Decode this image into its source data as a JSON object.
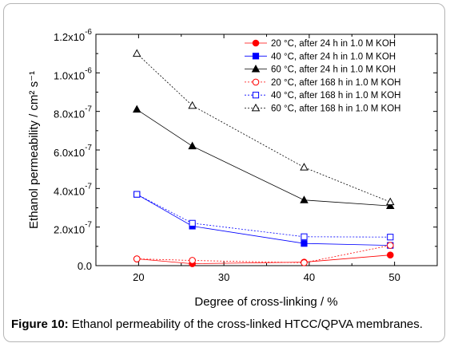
{
  "chart_data": {
    "type": "line",
    "xlabel": "Degree of cross-linking / %",
    "ylabel": "Ethanol permeability / cm² s⁻¹",
    "xlim": [
      15,
      55
    ],
    "ylim": [
      0,
      1.2e-06
    ],
    "x_ticks": [
      20,
      30,
      40,
      50
    ],
    "x_tick_labels": [
      "20",
      "30",
      "40",
      "50"
    ],
    "y_ticks": [
      0,
      2e-07,
      4e-07,
      6e-07,
      8e-07,
      1e-06,
      1.2e-06
    ],
    "y_tick_labels": [
      {
        "mantissa": "0.0",
        "exponent": ""
      },
      {
        "mantissa": "2.0x10",
        "exponent": "-7"
      },
      {
        "mantissa": "4.0x10",
        "exponent": "-7"
      },
      {
        "mantissa": "6.0x10",
        "exponent": "-7"
      },
      {
        "mantissa": "8.0x10",
        "exponent": "-7"
      },
      {
        "mantissa": "1.0x10",
        "exponent": "-6"
      },
      {
        "mantissa": "1.2x10",
        "exponent": "-6"
      }
    ],
    "legend_position": "top-right",
    "series": [
      {
        "name": "20 °C, after 24 h in 1.0 M KOH",
        "color": "#ff0000",
        "marker": "circle",
        "filled": true,
        "dashed": false,
        "x": [
          19.8,
          26.3,
          39.4,
          49.5
        ],
        "y": [
          3.5e-08,
          1e-08,
          1.8e-08,
          5.5e-08
        ]
      },
      {
        "name": "40 °C, after 24 h in 1.0 M KOH",
        "color": "#0000ff",
        "marker": "square",
        "filled": true,
        "dashed": false,
        "x": [
          19.8,
          26.3,
          39.4,
          49.5
        ],
        "y": [
          3.7e-07,
          2.05e-07,
          1.15e-07,
          1.05e-07
        ]
      },
      {
        "name": "60 °C, after 24 h in 1.0 M KOH",
        "color": "#000000",
        "marker": "triangle",
        "filled": true,
        "dashed": false,
        "x": [
          19.8,
          26.3,
          39.4,
          49.5
        ],
        "y": [
          8.1e-07,
          6.2e-07,
          3.4e-07,
          3.1e-07
        ]
      },
      {
        "name": "20 °C, after 168 h in 1.0 M KOH",
        "color": "#ff0000",
        "marker": "circle",
        "filled": false,
        "dashed": true,
        "x": [
          19.8,
          26.3,
          39.4,
          49.5
        ],
        "y": [
          3.5e-08,
          2.7e-08,
          1.5e-08,
          1.05e-07
        ]
      },
      {
        "name": "40 °C, after 168 h in 1.0 M KOH",
        "color": "#0000ff",
        "marker": "square",
        "filled": false,
        "dashed": true,
        "x": [
          19.8,
          26.3,
          39.4,
          49.5
        ],
        "y": [
          3.7e-07,
          2.2e-07,
          1.5e-07,
          1.48e-07
        ]
      },
      {
        "name": "60 °C, after 168 h in 1.0 M KOH",
        "color": "#000000",
        "marker": "triangle",
        "filled": false,
        "dashed": true,
        "x": [
          19.8,
          26.3,
          39.4,
          49.5
        ],
        "y": [
          1.1e-06,
          8.3e-07,
          5.1e-07,
          3.3e-07
        ]
      }
    ]
  },
  "caption": {
    "label": "Figure 10:",
    "text": "Ethanol permeability of the cross-linked HTCC/QPVA membranes."
  }
}
